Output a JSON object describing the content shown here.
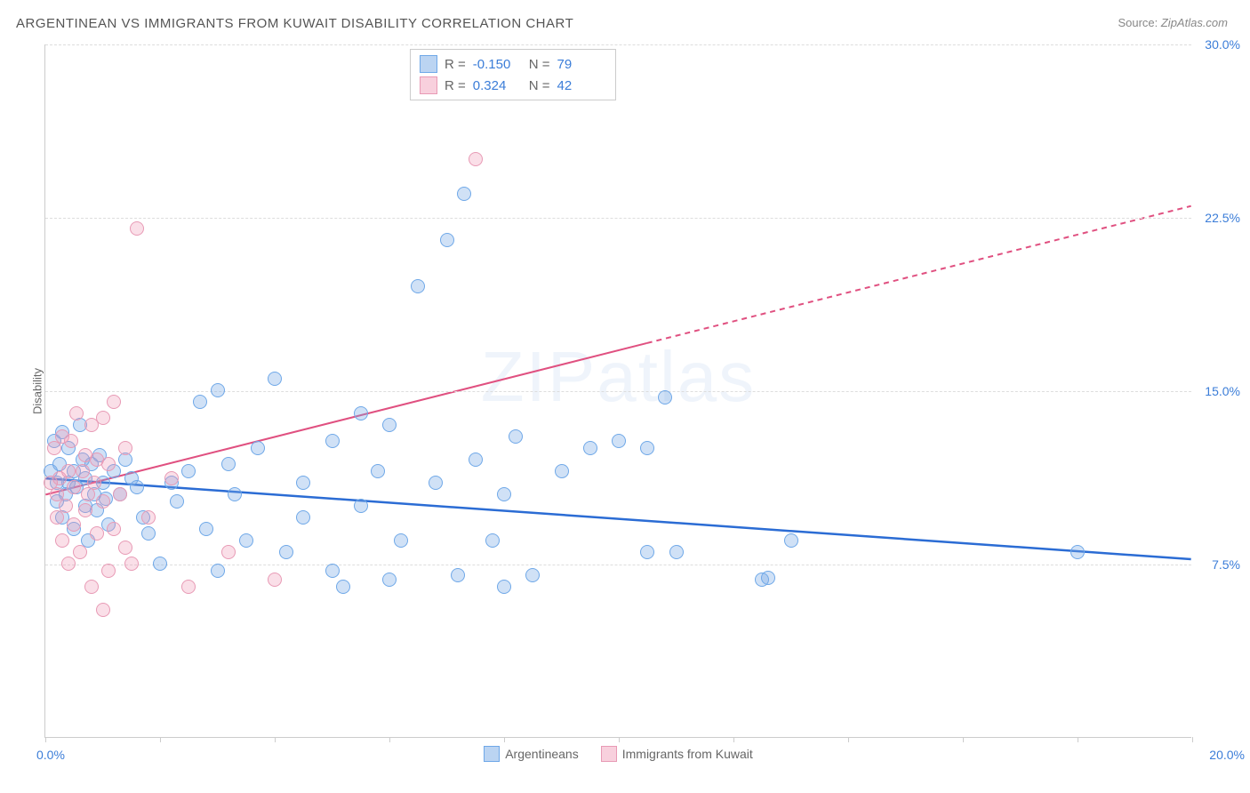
{
  "title": "ARGENTINEAN VS IMMIGRANTS FROM KUWAIT DISABILITY CORRELATION CHART",
  "source_prefix": "Source: ",
  "source_name": "ZipAtlas.com",
  "ylabel": "Disability",
  "watermark": "ZIPatlas",
  "chart": {
    "type": "scatter",
    "xlim": [
      0,
      20
    ],
    "ylim": [
      0,
      30
    ],
    "x_ticks": [
      0,
      2,
      4,
      6,
      8,
      10,
      12,
      14,
      16,
      18,
      20
    ],
    "x_tick_labels": {
      "0": "0.0%",
      "20": "20.0%"
    },
    "y_ticks": [
      7.5,
      15.0,
      22.5,
      30.0
    ],
    "y_tick_labels": [
      "7.5%",
      "15.0%",
      "22.5%",
      "30.0%"
    ],
    "grid_color": "#dddddd",
    "axis_color": "#cccccc",
    "background_color": "#ffffff",
    "tick_label_color": "#3b7dd8",
    "marker_radius": 8,
    "marker_stroke_width": 1.5
  },
  "series": [
    {
      "name": "Argentineans",
      "fill_color": "rgba(120,170,230,0.35)",
      "stroke_color": "#6fa8e8",
      "R": "-0.150",
      "N": "79",
      "trend": {
        "x1": 0,
        "y1": 11.2,
        "x2": 20,
        "y2": 7.7,
        "color": "#2b6cd4",
        "width": 2.5,
        "dashed_from": null
      },
      "points": [
        [
          0.1,
          11.5
        ],
        [
          0.15,
          12.8
        ],
        [
          0.2,
          10.2
        ],
        [
          0.2,
          11.0
        ],
        [
          0.25,
          11.8
        ],
        [
          0.3,
          9.5
        ],
        [
          0.3,
          13.2
        ],
        [
          0.35,
          10.5
        ],
        [
          0.4,
          11.0
        ],
        [
          0.4,
          12.5
        ],
        [
          0.5,
          9.0
        ],
        [
          0.5,
          11.5
        ],
        [
          0.55,
          10.8
        ],
        [
          0.6,
          13.5
        ],
        [
          0.65,
          12.0
        ],
        [
          0.7,
          10.0
        ],
        [
          0.7,
          11.2
        ],
        [
          0.75,
          8.5
        ],
        [
          0.8,
          11.8
        ],
        [
          0.85,
          10.5
        ],
        [
          0.9,
          9.8
        ],
        [
          0.95,
          12.2
        ],
        [
          1.0,
          11.0
        ],
        [
          1.05,
          10.3
        ],
        [
          1.1,
          9.2
        ],
        [
          1.2,
          11.5
        ],
        [
          1.3,
          10.5
        ],
        [
          1.4,
          12.0
        ],
        [
          1.5,
          11.2
        ],
        [
          1.6,
          10.8
        ],
        [
          1.7,
          9.5
        ],
        [
          1.8,
          8.8
        ],
        [
          2.0,
          7.5
        ],
        [
          2.2,
          11.0
        ],
        [
          2.3,
          10.2
        ],
        [
          2.5,
          11.5
        ],
        [
          2.7,
          14.5
        ],
        [
          2.8,
          9.0
        ],
        [
          3.0,
          7.2
        ],
        [
          3.0,
          15.0
        ],
        [
          3.2,
          11.8
        ],
        [
          3.3,
          10.5
        ],
        [
          3.5,
          8.5
        ],
        [
          3.7,
          12.5
        ],
        [
          4.0,
          15.5
        ],
        [
          4.2,
          8.0
        ],
        [
          4.5,
          9.5
        ],
        [
          4.5,
          11.0
        ],
        [
          5.0,
          7.2
        ],
        [
          5.0,
          12.8
        ],
        [
          5.2,
          6.5
        ],
        [
          5.5,
          10.0
        ],
        [
          5.5,
          14.0
        ],
        [
          5.8,
          11.5
        ],
        [
          6.0,
          6.8
        ],
        [
          6.0,
          13.5
        ],
        [
          6.2,
          8.5
        ],
        [
          6.5,
          19.5
        ],
        [
          6.8,
          11.0
        ],
        [
          7.0,
          21.5
        ],
        [
          7.2,
          7.0
        ],
        [
          7.3,
          23.5
        ],
        [
          7.5,
          12.0
        ],
        [
          7.8,
          8.5
        ],
        [
          8.0,
          6.5
        ],
        [
          8.0,
          10.5
        ],
        [
          8.2,
          13.0
        ],
        [
          8.5,
          7.0
        ],
        [
          9.0,
          11.5
        ],
        [
          9.5,
          12.5
        ],
        [
          10.0,
          12.8
        ],
        [
          10.5,
          8.0
        ],
        [
          10.5,
          12.5
        ],
        [
          10.8,
          14.7
        ],
        [
          11.0,
          8.0
        ],
        [
          12.5,
          6.8
        ],
        [
          12.6,
          6.9
        ],
        [
          13.0,
          8.5
        ],
        [
          18.0,
          8.0
        ]
      ]
    },
    {
      "name": "Immigrants from Kuwait",
      "fill_color": "rgba(240,150,180,0.3)",
      "stroke_color": "#e89ab5",
      "R": "0.324",
      "N": "42",
      "trend": {
        "x1": 0,
        "y1": 10.5,
        "x2": 20,
        "y2": 23.0,
        "color": "#e05080",
        "width": 2,
        "dashed_from": 10.5
      },
      "points": [
        [
          0.1,
          11.0
        ],
        [
          0.15,
          12.5
        ],
        [
          0.2,
          10.5
        ],
        [
          0.2,
          9.5
        ],
        [
          0.25,
          11.2
        ],
        [
          0.3,
          13.0
        ],
        [
          0.3,
          8.5
        ],
        [
          0.35,
          10.0
        ],
        [
          0.4,
          11.5
        ],
        [
          0.4,
          7.5
        ],
        [
          0.45,
          12.8
        ],
        [
          0.5,
          9.2
        ],
        [
          0.5,
          10.8
        ],
        [
          0.55,
          14.0
        ],
        [
          0.6,
          8.0
        ],
        [
          0.65,
          11.5
        ],
        [
          0.7,
          12.2
        ],
        [
          0.7,
          9.8
        ],
        [
          0.75,
          10.5
        ],
        [
          0.8,
          6.5
        ],
        [
          0.8,
          13.5
        ],
        [
          0.85,
          11.0
        ],
        [
          0.9,
          8.8
        ],
        [
          0.9,
          12.0
        ],
        [
          1.0,
          5.5
        ],
        [
          1.0,
          10.2
        ],
        [
          1.0,
          13.8
        ],
        [
          1.1,
          7.2
        ],
        [
          1.1,
          11.8
        ],
        [
          1.2,
          9.0
        ],
        [
          1.2,
          14.5
        ],
        [
          1.3,
          10.5
        ],
        [
          1.4,
          8.2
        ],
        [
          1.4,
          12.5
        ],
        [
          1.5,
          7.5
        ],
        [
          1.6,
          22.0
        ],
        [
          1.8,
          9.5
        ],
        [
          2.2,
          11.2
        ],
        [
          2.5,
          6.5
        ],
        [
          3.2,
          8.0
        ],
        [
          4.0,
          6.8
        ],
        [
          7.5,
          25.0
        ]
      ]
    }
  ],
  "legend_top": {
    "rows": [
      {
        "swatch_fill": "rgba(120,170,230,0.5)",
        "swatch_border": "#6fa8e8",
        "r_label": "R =",
        "r": "-0.150",
        "n_label": "N =",
        "n": "79"
      },
      {
        "swatch_fill": "rgba(240,150,180,0.45)",
        "swatch_border": "#e89ab5",
        "r_label": "R =",
        "r": "0.324",
        "n_label": "N =",
        "n": "42"
      }
    ]
  },
  "legend_bottom": {
    "items": [
      {
        "swatch_fill": "rgba(120,170,230,0.5)",
        "swatch_border": "#6fa8e8",
        "label": "Argentineans"
      },
      {
        "swatch_fill": "rgba(240,150,180,0.45)",
        "swatch_border": "#e89ab5",
        "label": "Immigrants from Kuwait"
      }
    ]
  }
}
